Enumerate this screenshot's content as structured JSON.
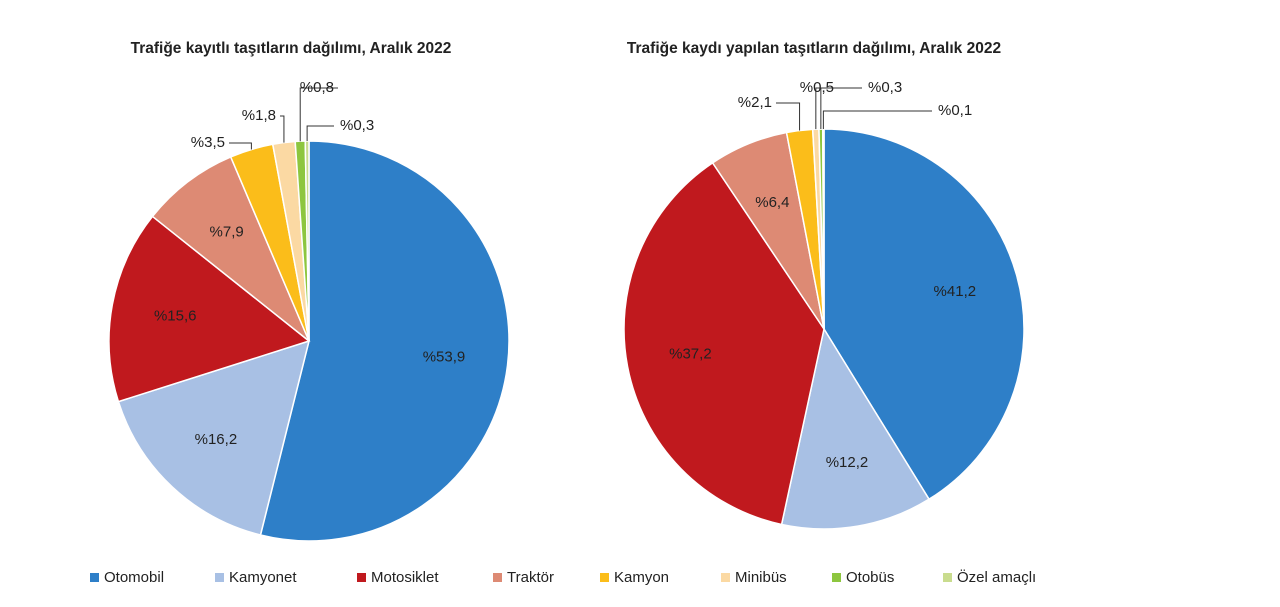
{
  "chart_data": [
    {
      "type": "pie",
      "title": "Trafiğe kayıtlı taşıtların dağılımı, Aralık 2022",
      "categories": [
        "Otomobil",
        "Kamyonet",
        "Motosiklet",
        "Traktör",
        "Kamyon",
        "Minibüs",
        "Otobüs",
        "Özel amaçlı"
      ],
      "values": [
        53.9,
        16.2,
        15.6,
        7.9,
        3.5,
        1.8,
        0.8,
        0.3
      ],
      "value_labels": [
        "%53,9",
        "%16,2",
        "%15,6",
        "%7,9",
        "%3,5",
        "%1,8",
        "%0,8",
        "%0,3"
      ],
      "colors": [
        "#2e7fc8",
        "#a8c0e4",
        "#c0191e",
        "#dd8a74",
        "#fbbd1a",
        "#fbd9a3",
        "#8dc63f",
        "#c9dc8e"
      ]
    },
    {
      "type": "pie",
      "title": "Trafiğe kaydı yapılan taşıtların dağılımı, Aralık 2022",
      "categories": [
        "Otomobil",
        "Kamyonet",
        "Motosiklet",
        "Traktör",
        "Kamyon",
        "Minibüs",
        "Otobüs",
        "Özel amaçlı"
      ],
      "values": [
        41.2,
        12.2,
        37.2,
        6.4,
        2.1,
        0.5,
        0.3,
        0.1
      ],
      "value_labels": [
        "%41,2",
        "%12,2",
        "%37,2",
        "%6,4",
        "%2,1",
        "%0,5",
        "%0,3",
        "%0,1"
      ],
      "colors": [
        "#2e7fc8",
        "#a8c0e4",
        "#c0191e",
        "#dd8a74",
        "#fbbd1a",
        "#fbd9a3",
        "#8dc63f",
        "#c9dc8e"
      ]
    }
  ]
}
